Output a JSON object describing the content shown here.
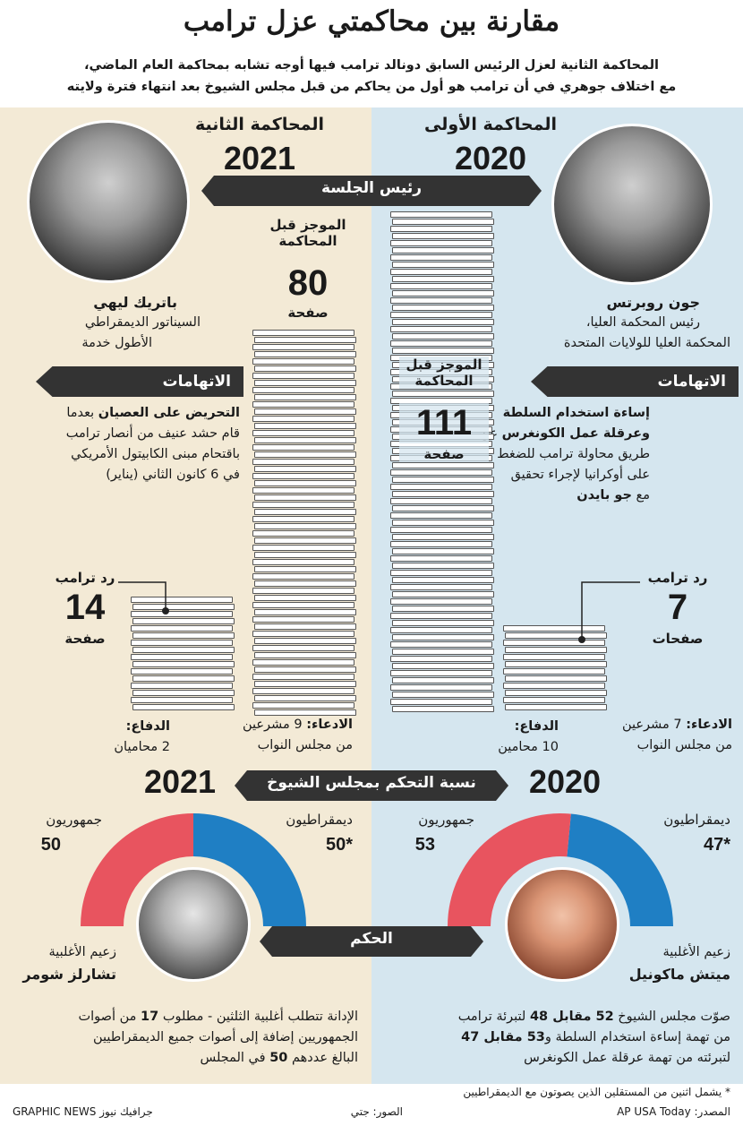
{
  "title": "مقارنة بين محاكمتي عزل ترامب",
  "subtitle_line1": "المحاكمة الثانية لعزل الرئيس السابق دونالد ترامب فيها أوجه تشابه بمحاكمة العام الماضي،",
  "subtitle_line2": "مع اختلاف جوهري في أن ترامب هو أول من يحاكم من قبل مجلس الشيوخ بعد انتهاء فترة ولايته",
  "first": {
    "label": "المحاكمة الأولى",
    "year": "2020",
    "presiding_name": "جون روبرتس",
    "presiding_role1": "رئيس المحكمة العليا،",
    "presiding_role2": "المحكمة العليا للولايات المتحدة",
    "charges_tag": "الاتهامات",
    "charge_l1": "إساءة استخدام السلطة",
    "charge_l2_bold": "وعرقلة عمل الكونغرس",
    "charge_l2_rest": " عن",
    "charge_l3": "طريق محاولة ترامب للضغط",
    "charge_l4": "على أوكرانيا لإجراء تحقيق",
    "charge_l5_rest": "مع ",
    "charge_l5_bold": "جو بايدن",
    "brief_label1": "الموجز قبل",
    "brief_label2": "المحاكمة",
    "brief_num": "111",
    "brief_unit": "صفحة",
    "reply_label": "رد ترامب",
    "reply_num": "7",
    "reply_unit": "صفحات",
    "prosecution_label": "الادعاء:",
    "prosecution_val": " 7 مشرعين",
    "prosecution_val2": "من مجلس النواب",
    "defense_label": "الدفاع:",
    "defense_val": "10 محامين",
    "senate_year": "2020",
    "dem_label": "ديمقراطيون",
    "dem_val": "47*",
    "rep_label": "جمهوريون",
    "rep_val": "53",
    "leader_role": "زعيم الأغلبية",
    "leader_name": "ميتش ماكونيل",
    "verdict_l1a": "صوّت مجلس الشيوخ ",
    "verdict_l1b": "52 مقابل 48",
    "verdict_l1c": " لتبرئة ترامب",
    "verdict_l2a": "من تهمة إساءة استخدام السلطة و",
    "verdict_l2b": "53 مقابل 47",
    "verdict_l3": "لتبرئته من تهمة عرقلة عمل الكونغرس"
  },
  "second": {
    "label": "المحاكمة الثانية",
    "year": "2021",
    "presiding_name": "باتريك ليهي",
    "presiding_role1": "السيناتور الديمقراطي",
    "presiding_role2": "الأطول خدمة",
    "charges_tag": "الاتهامات",
    "charge_l1_bold": "التحريض على العصيان",
    "charge_l1_rest": " بعدما",
    "charge_l2": "قام حشد عنيف من أنصار ترامب",
    "charge_l3": "باقتحام مبنى الكابيتول الأمريكي",
    "charge_l4": "في 6 كانون الثاني (يناير)",
    "brief_label1": "الموجز قبل",
    "brief_label2": "المحاكمة",
    "brief_num": "80",
    "brief_unit": "صفحة",
    "reply_label": "رد ترامب",
    "reply_num": "14",
    "reply_unit": "صفحة",
    "prosecution_label": "الادعاء:",
    "prosecution_val": " 9 مشرعين",
    "prosecution_val2": "من مجلس النواب",
    "defense_label": "الدفاع:",
    "defense_val": "2 محاميان",
    "senate_year": "2021",
    "dem_label": "ديمقراطيون",
    "dem_val": "50*",
    "rep_label": "جمهوريون",
    "rep_val": "50",
    "leader_role": "زعيم الأغلبية",
    "leader_name": "تشارلز شومر",
    "verdict_l1a": "الإدانة تتطلب أغلبية الثلثين - مطلوب ",
    "verdict_l1b": "17",
    "verdict_l1c": " من أصوات",
    "verdict_l2": "الجمهوريين إضافة إلى أصوات جميع الديمقراطيين",
    "verdict_l3a": "البالغ عددهم ",
    "verdict_l3b": "50",
    "verdict_l3c": " في المجلس"
  },
  "banners": {
    "presiding": "رئيس الجلسة",
    "senate_control": "نسبة التحكم بمجلس الشيوخ",
    "verdict": "الحكم"
  },
  "colors": {
    "dem": "#1f7fc4",
    "rep": "#e8545f",
    "dark": "#333333"
  },
  "footer": {
    "note": "* يشمل اثنين من المستقلين الذين يصوتون مع الديمقراطيين",
    "source": "المصدر: AP USA Today",
    "photos": "الصور: جتي",
    "brand": "GRAPHIC NEWS جرافيك نيوز"
  }
}
